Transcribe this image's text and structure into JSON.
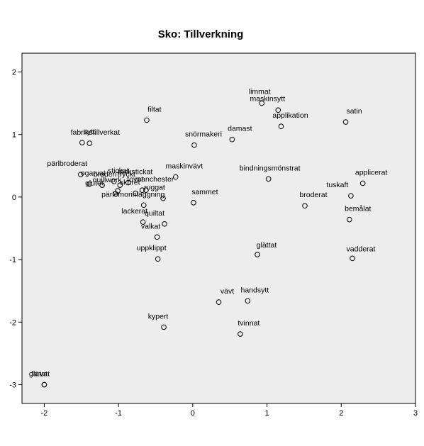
{
  "chart_data": {
    "type": "scatter",
    "title": "Sko: Tillverkning",
    "xlabel": "",
    "ylabel": "",
    "xlim": [
      -2.3,
      3.0
    ],
    "ylim": [
      -3.3,
      2.3
    ],
    "x_ticks": [
      -2,
      -1,
      0,
      1,
      2,
      3
    ],
    "y_ticks": [
      2,
      1,
      0,
      -1,
      -2,
      -3
    ],
    "grid": false,
    "background_color": "#ededed",
    "marker": "open-circle",
    "points": [
      {
        "label": "limmat",
        "x": 0.93,
        "y": 1.5
      },
      {
        "label": "maskinsytt",
        "x": 1.15,
        "y": 1.39
      },
      {
        "label": "applikation",
        "x": 1.19,
        "y": 1.13
      },
      {
        "label": "satin",
        "x": 2.06,
        "y": 1.2
      },
      {
        "label": "filtat",
        "x": -0.62,
        "y": 1.23
      },
      {
        "label": "damast",
        "x": 0.53,
        "y": 0.92
      },
      {
        "label": "snörmakeri",
        "x": 0.02,
        "y": 0.83
      },
      {
        "label": "sytt",
        "x": -1.49,
        "y": 0.87
      },
      {
        "label": "fabrikstillverkat",
        "x": -1.39,
        "y": 0.86
      },
      {
        "label": "täckstickat",
        "x": -0.87,
        "y": 0.23
      },
      {
        "label": "maskinvävt",
        "x": -0.23,
        "y": 0.32
      },
      {
        "label": "bindningsmönstrat",
        "x": 1.02,
        "y": 0.29
      },
      {
        "label": "pärlbroderat",
        "x": -1.51,
        "y": 0.36
      },
      {
        "label": "broderi",
        "x": -1.22,
        "y": 0.19
      },
      {
        "label": "tryckt",
        "x": -0.98,
        "y": 0.19
      },
      {
        "label": "stickat",
        "x": -1.06,
        "y": 0.25
      },
      {
        "label": "ogarvat",
        "x": -1.39,
        "y": 0.21
      },
      {
        "label": "tovat",
        "x": -0.68,
        "y": 0.11
      },
      {
        "label": "manchester",
        "x": -0.63,
        "y": 0.11
      },
      {
        "label": "quillwork",
        "x": -1.01,
        "y": 0.1
      },
      {
        "label": "sammet",
        "x": 0.01,
        "y": -0.09
      },
      {
        "label": "skuret",
        "x": -0.77,
        "y": 0.06
      },
      {
        "label": "gjutet",
        "x": -1.04,
        "y": 0.05
      },
      {
        "label": "ruggat",
        "x": -0.4,
        "y": -0.02
      },
      {
        "label": "pärlemorinläggning",
        "x": -0.66,
        "y": -0.13
      },
      {
        "label": "lackerat",
        "x": -0.67,
        "y": -0.4
      },
      {
        "label": "quiltat",
        "x": -0.38,
        "y": -0.43
      },
      {
        "label": "valkat",
        "x": -0.48,
        "y": -0.64
      },
      {
        "label": "uppklippt",
        "x": -0.47,
        "y": -0.99
      },
      {
        "label": "glättat",
        "x": 0.87,
        "y": -0.92
      },
      {
        "label": "vadderat",
        "x": 2.15,
        "y": -0.98
      },
      {
        "label": "applicerat",
        "x": 2.29,
        "y": 0.22
      },
      {
        "label": "tuskaft",
        "x": 2.13,
        "y": 0.02
      },
      {
        "label": "broderat",
        "x": 1.51,
        "y": -0.14
      },
      {
        "label": "bemålat",
        "x": 2.11,
        "y": -0.36
      },
      {
        "label": "vävt",
        "x": 0.35,
        "y": -1.68
      },
      {
        "label": "handsytt",
        "x": 0.74,
        "y": -1.66
      },
      {
        "label": "kypert",
        "x": -0.39,
        "y": -2.08
      },
      {
        "label": "tvinnat",
        "x": 0.64,
        "y": -2.19
      },
      {
        "label": "garvat",
        "x": -2.0,
        "y": -3.0
      },
      {
        "label": "flätat",
        "x": -2.0,
        "y": -3.0
      }
    ]
  }
}
